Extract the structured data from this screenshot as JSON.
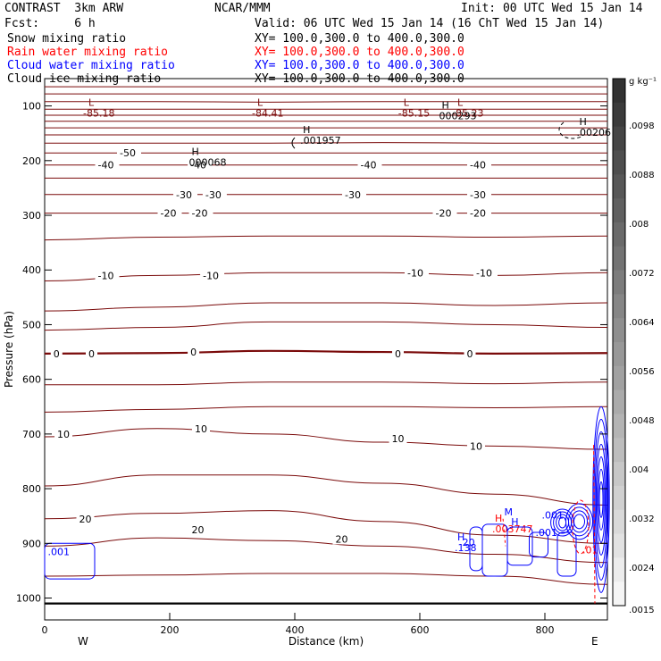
{
  "header": {
    "left1": "CONTRAST  3km ARW",
    "left2": "Fcst:     6 h",
    "center1": "NCAR/MMM",
    "init": "Init: 00 UTC Wed 15 Jan 14",
    "valid": "Valid: 06 UTC Wed 15 Jan 14 (16 ChT Wed 15 Jan 14)"
  },
  "fields": [
    {
      "name": "Snow mixing ratio",
      "xy": "XY= 100.0,300.0 to 400.0,300.0",
      "color": "#000000"
    },
    {
      "name": "Rain water mixing ratio",
      "xy": "XY= 100.0,300.0 to 400.0,300.0",
      "color": "#ff0000"
    },
    {
      "name": "Cloud water mixing ratio",
      "xy": "XY= 100.0,300.0 to 400.0,300.0",
      "color": "#0000ff"
    },
    {
      "name": "Cloud ice mixing ratio",
      "xy": "XY= 100.0,300.0 to 400.0,300.0",
      "color": "#000000"
    }
  ],
  "colorbar": {
    "unit": "g kg⁻¹",
    "labels": [
      ".0098",
      ".0088",
      ".008",
      ".0072",
      ".0064",
      ".0056",
      ".0048",
      ".004",
      ".0032",
      ".0024",
      ".0015"
    ]
  },
  "chart_data": {
    "type": "contour",
    "xlabel": "Distance (km)",
    "ylabel": "Pressure (hPa)",
    "xlim": [
      0,
      900
    ],
    "ylim": [
      50,
      1040
    ],
    "x_ticks": [
      0,
      200,
      400,
      600,
      800
    ],
    "y_ticks": [
      100,
      200,
      300,
      400,
      500,
      600,
      700,
      800,
      900,
      1000
    ],
    "x_end_labels": {
      "left": "W",
      "right": "E"
    },
    "temperature_contours": [
      {
        "p": [
          65,
          65,
          65,
          65,
          65,
          65
        ]
      },
      {
        "p": [
          78,
          78,
          78,
          78,
          78,
          78
        ]
      },
      {
        "p": [
          92,
          92,
          93,
          92,
          92,
          92
        ]
      },
      {
        "p": [
          106,
          106,
          106,
          106,
          106,
          106
        ]
      },
      {
        "p": [
          117,
          117,
          117,
          117,
          117,
          117
        ]
      },
      {
        "p": [
          128,
          128,
          128,
          128,
          128,
          128
        ]
      },
      {
        "p": [
          140,
          140,
          140,
          140,
          140,
          140
        ]
      },
      {
        "p": [
          153,
          153,
          153,
          153,
          153,
          153
        ]
      },
      {
        "p": [
          168,
          168,
          168,
          167,
          168,
          168
        ]
      },
      {
        "p": [
          186,
          186,
          186,
          186,
          186,
          186
        ]
      },
      {
        "p": [
          208,
          208,
          208,
          208,
          208,
          208
        ]
      },
      {
        "p": [
          232,
          232,
          232,
          232,
          232,
          232
        ]
      },
      {
        "p": [
          262,
          262,
          262,
          262,
          262,
          262
        ]
      },
      {
        "p": [
          296,
          296,
          296,
          296,
          296,
          296
        ]
      },
      {
        "p": [
          345,
          340,
          338,
          338,
          340,
          338
        ]
      },
      {
        "p": [
          420,
          410,
          405,
          405,
          410,
          405
        ]
      },
      {
        "p": [
          475,
          468,
          460,
          460,
          465,
          460
        ]
      },
      {
        "p": [
          510,
          505,
          495,
          495,
          500,
          505
        ]
      },
      {
        "p": [
          553,
          552,
          548,
          550,
          553,
          552
        ],
        "bold": true
      },
      {
        "p": [
          610,
          610,
          605,
          605,
          608,
          605
        ]
      },
      {
        "p": [
          660,
          655,
          650,
          650,
          652,
          650
        ]
      },
      {
        "p": [
          705,
          690,
          700,
          715,
          722,
          728
        ]
      },
      {
        "p": [
          795,
          775,
          775,
          790,
          810,
          830
        ]
      },
      {
        "p": [
          855,
          845,
          840,
          860,
          885,
          900
        ]
      },
      {
        "p": [
          905,
          890,
          895,
          905,
          920,
          935
        ]
      },
      {
        "p": [
          960,
          958,
          955,
          955,
          960,
          975
        ]
      },
      {
        "p": [
          1010,
          1010,
          1010,
          1010,
          1010,
          1010
        ],
        "bold": true,
        "black": true
      }
    ],
    "contour_x": [
      0,
      180,
      360,
      540,
      720,
      900
    ],
    "temperature_labels": [
      {
        "t": "-50",
        "x": 120,
        "p": 186
      },
      {
        "t": "-40",
        "x": 85,
        "p": 208
      },
      {
        "t": "-40",
        "x": 233,
        "p": 208
      },
      {
        "t": "-40",
        "x": 505,
        "p": 208
      },
      {
        "t": "-40",
        "x": 680,
        "p": 208
      },
      {
        "t": "-30",
        "x": 210,
        "p": 262
      },
      {
        "t": "-30",
        "x": 257,
        "p": 262
      },
      {
        "t": "-30",
        "x": 480,
        "p": 262
      },
      {
        "t": "-30",
        "x": 680,
        "p": 262
      },
      {
        "t": "-20",
        "x": 185,
        "p": 296
      },
      {
        "t": "-20",
        "x": 235,
        "p": 296
      },
      {
        "t": "-20",
        "x": 625,
        "p": 296
      },
      {
        "t": "-20",
        "x": 680,
        "p": 296
      },
      {
        "t": "-10",
        "x": 85,
        "p": 410
      },
      {
        "t": "-10",
        "x": 253,
        "p": 410
      },
      {
        "t": "-10",
        "x": 580,
        "p": 405
      },
      {
        "t": "-10",
        "x": 690,
        "p": 405
      },
      {
        "t": "0",
        "x": 14,
        "p": 553
      },
      {
        "t": "0",
        "x": 70,
        "p": 553
      },
      {
        "t": "0",
        "x": 233,
        "p": 550
      },
      {
        "t": "0",
        "x": 560,
        "p": 553
      },
      {
        "t": "0",
        "x": 675,
        "p": 553
      },
      {
        "t": "10",
        "x": 20,
        "p": 700
      },
      {
        "t": "10",
        "x": 240,
        "p": 690
      },
      {
        "t": "10",
        "x": 555,
        "p": 708
      },
      {
        "t": "10",
        "x": 680,
        "p": 722
      },
      {
        "t": "20",
        "x": 55,
        "p": 855
      },
      {
        "t": "20",
        "x": 235,
        "p": 875
      },
      {
        "t": "20",
        "x": 465,
        "p": 892
      }
    ],
    "low_labels": [
      {
        "t": "L",
        "x": 70,
        "p": 93,
        "v": "-85.18"
      },
      {
        "t": "L",
        "x": 340,
        "p": 93,
        "v": "-84.41"
      },
      {
        "t": "L",
        "x": 574,
        "p": 93,
        "v": "-85.15"
      },
      {
        "t": "L",
        "x": 660,
        "p": 93,
        "v": "-85.23"
      }
    ],
    "high_labels": [
      {
        "t": "H",
        "x": 235,
        "p": 190,
        "v": "000068",
        "color": "#000000"
      },
      {
        "t": "H",
        "x": 413,
        "p": 150,
        "v": ".001957",
        "color": "#000000"
      },
      {
        "t": "H",
        "x": 635,
        "p": 105,
        "v": "000293",
        "color": "#000000"
      },
      {
        "t": "H",
        "x": 855,
        "p": 135,
        "v": ".00206",
        "color": "#000000"
      },
      {
        "t": "H",
        "x": 660,
        "p": 895,
        "v": ".138",
        "color": "#0000ff"
      },
      {
        "t": "H",
        "x": 720,
        "p": 860,
        "v": ".003747",
        "color": "#ff0000"
      }
    ],
    "misc_labels": [
      {
        "t": ".001",
        "x": 5,
        "p": 915,
        "color": "#0000ff"
      },
      {
        "t": ".001",
        "x": 795,
        "p": 848,
        "color": "#0000ff"
      },
      {
        "t": ".001",
        "x": 785,
        "p": 880,
        "color": "#0000ff"
      },
      {
        "t": "20",
        "x": 668,
        "p": 898,
        "color": "#0000ff"
      },
      {
        "t": "M",
        "x": 735,
        "p": 842,
        "color": "#0000ff"
      },
      {
        "t": "H",
        "x": 746,
        "p": 860,
        "color": "#0000ff"
      },
      {
        "t": ".01",
        "x": 860,
        "p": 912,
        "color": "#ff0000"
      }
    ]
  }
}
